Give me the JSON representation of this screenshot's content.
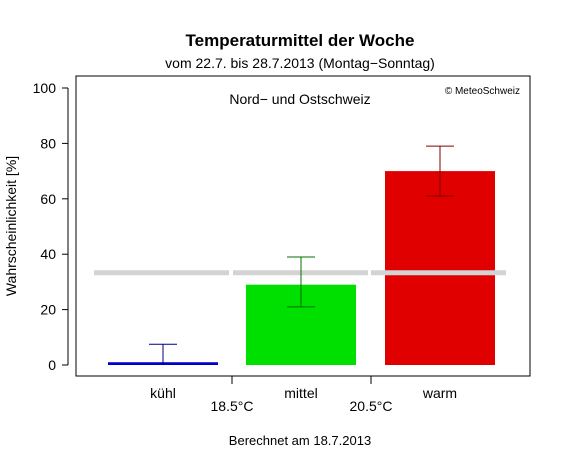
{
  "chart_data": {
    "type": "bar",
    "title": "Temperaturmittel der Woche",
    "subtitle": "vom 22.7. bis 28.7.2013 (Montag−Sonntag)",
    "region_label": "Nord− und Ostschweiz",
    "copyright": "© MeteoSchweiz",
    "ylabel": "Wahrscheinlichkeit [%]",
    "ylim": [
      0,
      100
    ],
    "yticks": [
      0,
      20,
      40,
      60,
      80,
      100
    ],
    "categories": [
      "kühl",
      "mittel",
      "warm"
    ],
    "thresholds": [
      "18.5°C",
      "20.5°C"
    ],
    "values": [
      1,
      29,
      70
    ],
    "error_low": [
      0,
      21,
      61
    ],
    "error_high": [
      7.5,
      39,
      79
    ],
    "reference_value": 33.3,
    "colors": [
      "#0000cc",
      "#00e000",
      "#e00000"
    ],
    "error_colors": [
      "#000080",
      "#007000",
      "#800000"
    ],
    "reference_color": "#d3d3d3",
    "footer": "Berechnet am 18.7.2013"
  }
}
